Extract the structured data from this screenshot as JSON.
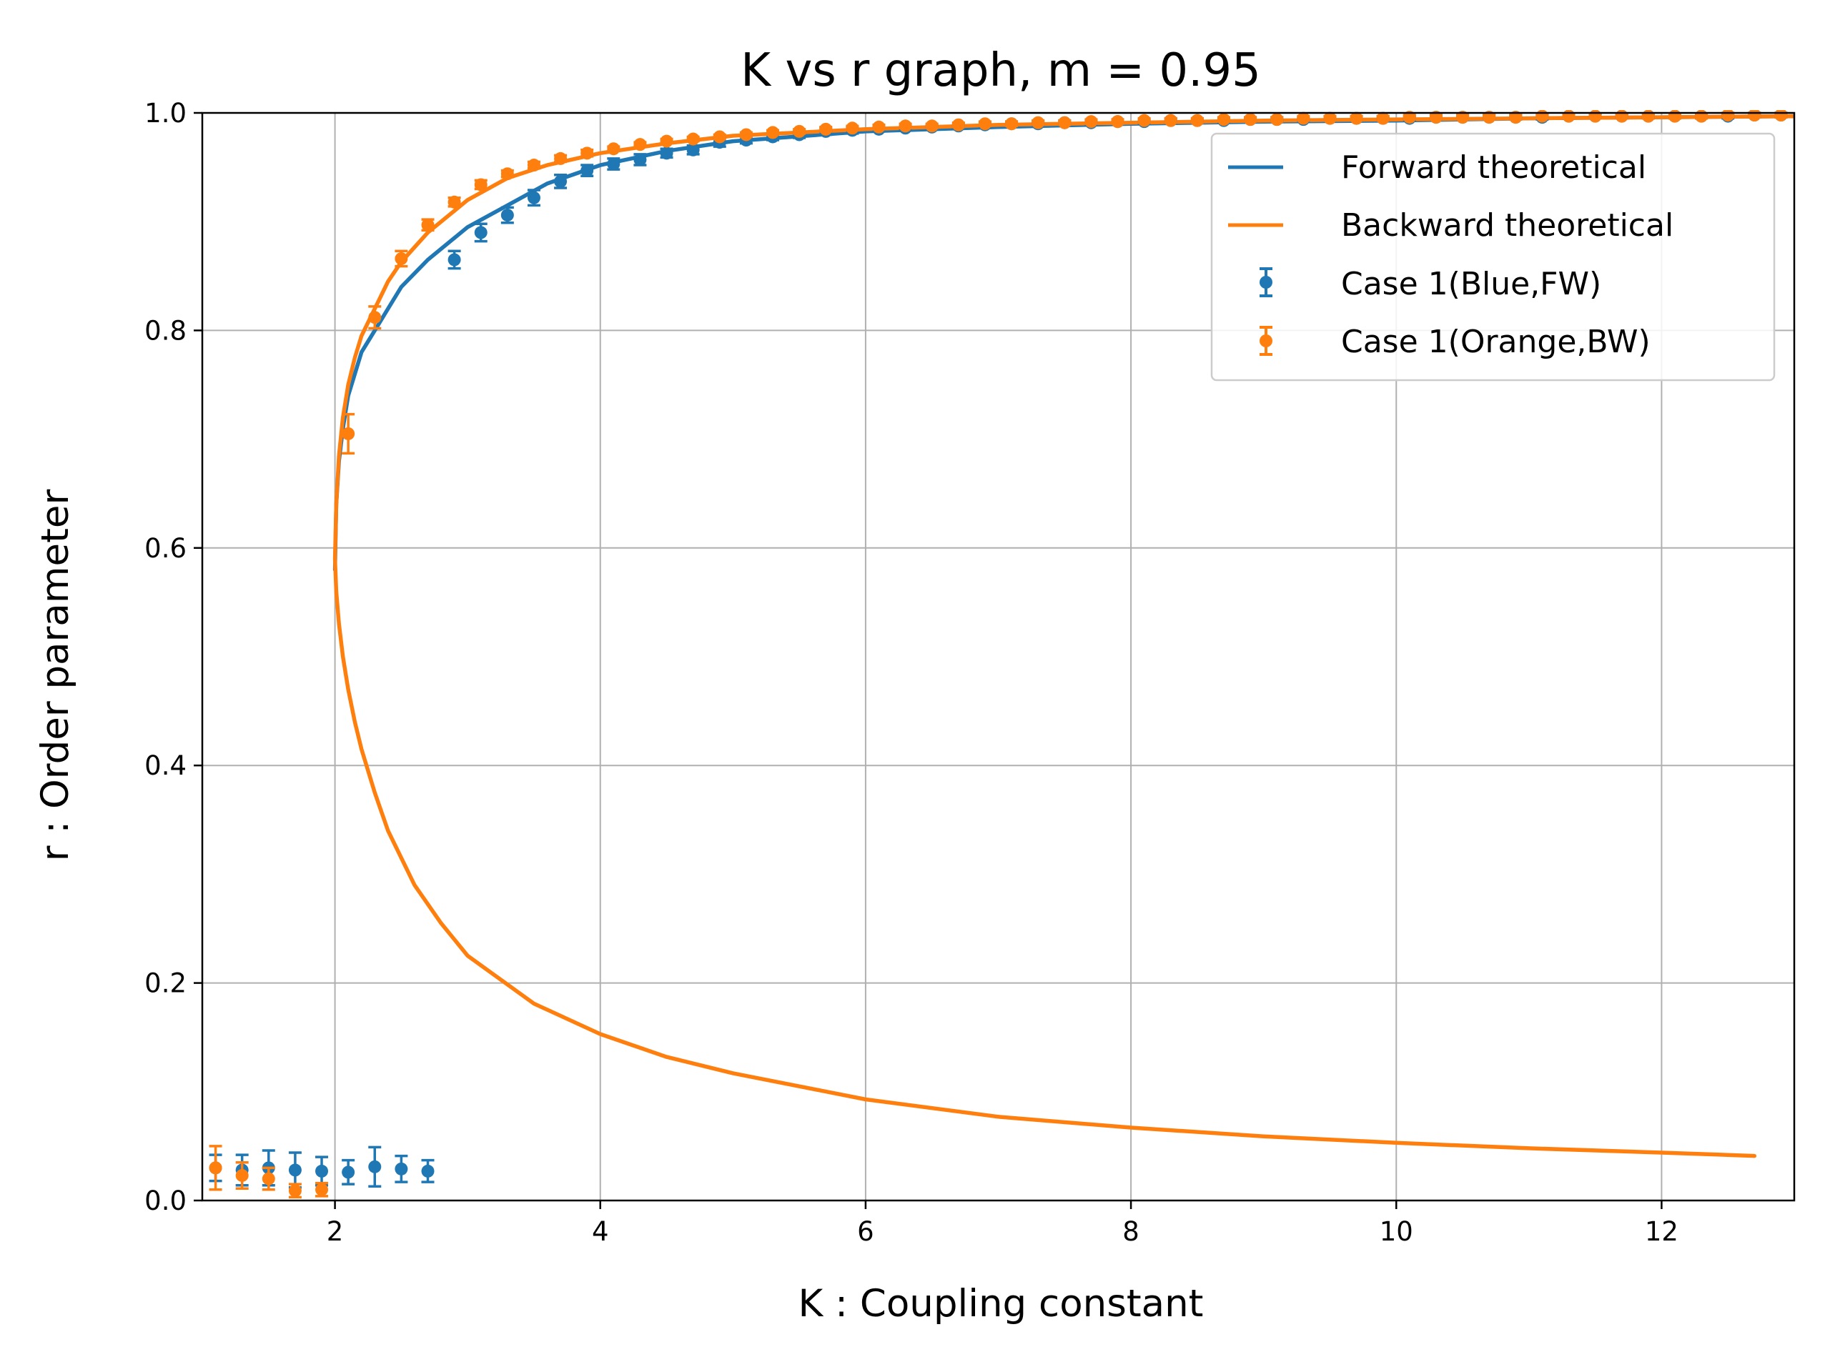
{
  "chart_data": {
    "type": "line",
    "title": "K vs r graph, m = 0.95",
    "xlabel": "K : Coupling constant",
    "ylabel": "r : Order parameter",
    "xlim": [
      1,
      13
    ],
    "ylim": [
      0,
      1
    ],
    "xticks": [
      2,
      4,
      6,
      8,
      10,
      12
    ],
    "yticks": [
      0.0,
      0.2,
      0.4,
      0.6,
      0.8,
      1.0
    ],
    "xtick_labels": [
      "2",
      "4",
      "6",
      "8",
      "10",
      "12"
    ],
    "ytick_labels": [
      "0.0",
      "0.2",
      "0.4",
      "0.6",
      "0.8",
      "1.0"
    ],
    "grid": true,
    "legend_position": "top-right",
    "colors": {
      "blue": "#1f77b4",
      "orange": "#ff7f0e",
      "grid": "#b0b0b0"
    },
    "series": [
      {
        "name": "Forward theoretical",
        "kind": "line",
        "color": "#1f77b4",
        "x": [
          2.0,
          2.01,
          2.03,
          2.06,
          2.1,
          2.15,
          2.2,
          2.3,
          2.4,
          2.5,
          2.7,
          3.0,
          3.3,
          3.6,
          4.0,
          4.5,
          5.0,
          6.0,
          7.0,
          8.0,
          9.0,
          10.0,
          11.0,
          12.0,
          13.0
        ],
        "y": [
          0.58,
          0.64,
          0.68,
          0.71,
          0.74,
          0.76,
          0.78,
          0.8,
          0.82,
          0.84,
          0.865,
          0.895,
          0.915,
          0.935,
          0.952,
          0.965,
          0.974,
          0.983,
          0.987,
          0.99,
          0.992,
          0.993,
          0.995,
          0.996,
          0.997
        ]
      },
      {
        "name": "Backward theoretical",
        "kind": "line",
        "color": "#ff7f0e",
        "x": [
          12.7,
          12.0,
          11.0,
          10.0,
          9.0,
          8.0,
          7.0,
          6.0,
          5.0,
          4.5,
          4.0,
          3.5,
          3.0,
          2.8,
          2.6,
          2.4,
          2.3,
          2.2,
          2.15,
          2.1,
          2.06,
          2.03,
          2.01,
          2.0,
          2.01,
          2.03,
          2.06,
          2.1,
          2.15,
          2.2,
          2.3,
          2.4,
          2.5,
          2.7,
          3.0,
          3.3,
          3.6,
          4.0,
          4.5,
          5.0,
          6.0,
          7.0,
          8.0,
          9.0,
          10.0,
          11.0,
          12.0,
          13.0
        ],
        "y": [
          0.041,
          0.044,
          0.048,
          0.053,
          0.059,
          0.067,
          0.077,
          0.093,
          0.117,
          0.132,
          0.153,
          0.181,
          0.225,
          0.255,
          0.29,
          0.34,
          0.375,
          0.415,
          0.44,
          0.47,
          0.5,
          0.53,
          0.56,
          0.59,
          0.64,
          0.685,
          0.72,
          0.75,
          0.775,
          0.795,
          0.82,
          0.845,
          0.863,
          0.89,
          0.92,
          0.94,
          0.952,
          0.963,
          0.972,
          0.979,
          0.985,
          0.989,
          0.991,
          0.993,
          0.994,
          0.995,
          0.996,
          0.997
        ]
      },
      {
        "name": "Case 1(Blue,FW)",
        "kind": "errorbar",
        "color": "#1f77b4",
        "x": [
          1.1,
          1.3,
          1.5,
          1.7,
          1.9,
          2.1,
          2.3,
          2.5,
          2.7,
          2.9,
          3.1,
          3.3,
          3.5,
          3.7,
          3.9,
          4.1,
          4.3,
          4.5,
          4.7,
          4.9,
          5.1,
          5.3,
          5.5,
          5.7,
          5.9,
          6.1,
          6.3,
          6.5,
          6.7,
          6.9,
          7.1,
          7.3,
          7.5,
          7.7,
          7.9,
          8.1,
          8.3,
          8.5,
          8.7,
          8.9,
          9.1,
          9.3,
          9.5,
          9.7,
          9.9,
          10.1,
          10.3,
          10.5,
          10.7,
          10.9,
          11.1,
          11.3,
          11.5,
          11.7,
          11.9,
          12.1,
          12.3,
          12.5,
          12.7,
          12.9
        ],
        "y": [
          0.03,
          0.028,
          0.03,
          0.028,
          0.027,
          0.026,
          0.031,
          0.029,
          0.027,
          0.865,
          0.89,
          0.906,
          0.922,
          0.937,
          0.947,
          0.953,
          0.957,
          0.963,
          0.966,
          0.973,
          0.975,
          0.978,
          0.98,
          0.983,
          0.984,
          0.985,
          0.986,
          0.987,
          0.988,
          0.989,
          0.99,
          0.99,
          0.991,
          0.991,
          0.992,
          0.992,
          0.993,
          0.993,
          0.993,
          0.994,
          0.994,
          0.994,
          0.995,
          0.995,
          0.995,
          0.995,
          0.996,
          0.996,
          0.996,
          0.996,
          0.996,
          0.997,
          0.997,
          0.997,
          0.997,
          0.997,
          0.997,
          0.997,
          0.998,
          0.998
        ],
        "err": [
          0.012,
          0.014,
          0.016,
          0.016,
          0.013,
          0.011,
          0.018,
          0.012,
          0.01,
          0.008,
          0.008,
          0.007,
          0.007,
          0.006,
          0.005,
          0.005,
          0.005,
          0.004,
          0.004,
          0.004,
          0.003,
          0.003,
          0.003,
          0.003,
          0.003,
          0.002,
          0.002,
          0.002,
          0.002,
          0.002,
          0.002,
          0.002,
          0.002,
          0.002,
          0.002,
          0.002,
          0.002,
          0.002,
          0.002,
          0.002,
          0.002,
          0.002,
          0.002,
          0.002,
          0.002,
          0.002,
          0.002,
          0.002,
          0.002,
          0.002,
          0.002,
          0.002,
          0.002,
          0.002,
          0.002,
          0.002,
          0.002,
          0.002,
          0.002,
          0.002
        ]
      },
      {
        "name": "Case 1(Orange,BW)",
        "kind": "errorbar",
        "color": "#ff7f0e",
        "x": [
          1.1,
          1.3,
          1.5,
          1.7,
          1.9,
          2.1,
          2.3,
          2.5,
          2.7,
          2.9,
          3.1,
          3.3,
          3.5,
          3.7,
          3.9,
          4.1,
          4.3,
          4.5,
          4.7,
          4.9,
          5.1,
          5.3,
          5.5,
          5.7,
          5.9,
          6.1,
          6.3,
          6.5,
          6.7,
          6.9,
          7.1,
          7.3,
          7.5,
          7.7,
          7.9,
          8.1,
          8.3,
          8.5,
          8.7,
          8.9,
          9.1,
          9.3,
          9.5,
          9.7,
          9.9,
          10.1,
          10.3,
          10.5,
          10.7,
          10.9,
          11.1,
          11.3,
          11.5,
          11.7,
          11.9,
          12.1,
          12.3,
          12.5,
          12.7,
          12.9
        ],
        "y": [
          0.03,
          0.023,
          0.02,
          0.009,
          0.01,
          0.705,
          0.812,
          0.866,
          0.897,
          0.918,
          0.934,
          0.944,
          0.952,
          0.958,
          0.963,
          0.967,
          0.971,
          0.974,
          0.976,
          0.978,
          0.98,
          0.982,
          0.983,
          0.985,
          0.986,
          0.987,
          0.988,
          0.988,
          0.989,
          0.99,
          0.99,
          0.991,
          0.991,
          0.992,
          0.992,
          0.993,
          0.993,
          0.993,
          0.994,
          0.994,
          0.994,
          0.995,
          0.995,
          0.995,
          0.995,
          0.996,
          0.996,
          0.996,
          0.996,
          0.996,
          0.997,
          0.997,
          0.997,
          0.997,
          0.997,
          0.997,
          0.997,
          0.998,
          0.998,
          0.998
        ],
        "err": [
          0.02,
          0.012,
          0.01,
          0.006,
          0.006,
          0.018,
          0.01,
          0.007,
          0.005,
          0.004,
          0.004,
          0.003,
          0.003,
          0.003,
          0.003,
          0.002,
          0.002,
          0.002,
          0.002,
          0.002,
          0.002,
          0.002,
          0.002,
          0.002,
          0.002,
          0.002,
          0.002,
          0.002,
          0.002,
          0.002,
          0.002,
          0.002,
          0.002,
          0.002,
          0.002,
          0.002,
          0.002,
          0.002,
          0.002,
          0.002,
          0.002,
          0.002,
          0.002,
          0.002,
          0.002,
          0.002,
          0.002,
          0.002,
          0.002,
          0.002,
          0.002,
          0.002,
          0.002,
          0.002,
          0.002,
          0.002,
          0.002,
          0.002,
          0.002,
          0.002
        ]
      }
    ]
  }
}
